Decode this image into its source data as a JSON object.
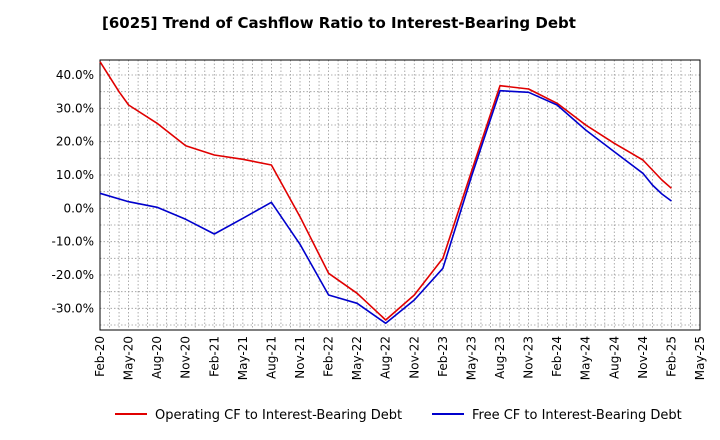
{
  "chart_data": {
    "type": "line",
    "title": "[6025]  Trend of Cashflow Ratio to Interest-Bearing Debt",
    "xlabel": "",
    "ylabel": "",
    "x_ticks": [
      "Feb-20",
      "May-20",
      "Aug-20",
      "Nov-20",
      "Feb-21",
      "May-21",
      "Aug-21",
      "Nov-21",
      "Feb-22",
      "May-22",
      "Aug-22",
      "Nov-22",
      "Feb-23",
      "May-23",
      "Aug-23",
      "Nov-23",
      "Feb-24",
      "May-24",
      "Aug-24",
      "Nov-24",
      "Feb-25",
      "May-25"
    ],
    "y_ticks": [
      "40.0%",
      "30.0%",
      "20.0%",
      "10.0%",
      "0.0%",
      "-10.0%",
      "-20.0%",
      "-30.0%"
    ],
    "ylim": [
      -36.5,
      44.5
    ],
    "grid": true,
    "legend_position": "bottom",
    "series": [
      {
        "name": "Operating CF to Interest-Bearing Debt",
        "color": "#e00000",
        "points": [
          [
            "Feb-20",
            44.0
          ],
          [
            "Apr-20",
            35.0
          ],
          [
            "May-20",
            31.0
          ],
          [
            "Aug-20",
            25.5
          ],
          [
            "Nov-20",
            18.8
          ],
          [
            "Feb-21",
            16.0
          ],
          [
            "May-21",
            14.7
          ],
          [
            "Aug-21",
            13.0
          ],
          [
            "Nov-21",
            -2.5
          ],
          [
            "Feb-22",
            -19.5
          ],
          [
            "May-22",
            -25.5
          ],
          [
            "Aug-22",
            -33.5
          ],
          [
            "Nov-22",
            -26.0
          ],
          [
            "Feb-23",
            -15.0
          ],
          [
            "May-23",
            11.0
          ],
          [
            "Aug-23",
            36.8
          ],
          [
            "Nov-23",
            35.8
          ],
          [
            "Feb-24",
            31.5
          ],
          [
            "May-24",
            25.0
          ],
          [
            "Aug-24",
            19.5
          ],
          [
            "Nov-24",
            14.5
          ],
          [
            "Dec-24",
            11.5
          ],
          [
            "Jan-25",
            8.5
          ],
          [
            "Feb-25",
            6.0
          ]
        ]
      },
      {
        "name": "Free CF to Interest-Bearing Debt",
        "color": "#0000cc",
        "points": [
          [
            "Feb-20",
            4.5
          ],
          [
            "May-20",
            2.0
          ],
          [
            "Aug-20",
            0.3
          ],
          [
            "Nov-20",
            -3.3
          ],
          [
            "Feb-21",
            -7.7
          ],
          [
            "May-21",
            -3.0
          ],
          [
            "Aug-21",
            1.8
          ],
          [
            "Nov-21",
            -10.8
          ],
          [
            "Feb-22",
            -26.0
          ],
          [
            "May-22",
            -28.5
          ],
          [
            "Aug-22",
            -34.5
          ],
          [
            "Nov-22",
            -27.5
          ],
          [
            "Feb-23",
            -18.0
          ],
          [
            "May-23",
            9.5
          ],
          [
            "Aug-23",
            35.3
          ],
          [
            "Nov-23",
            34.8
          ],
          [
            "Feb-24",
            31.0
          ],
          [
            "May-24",
            23.5
          ],
          [
            "Aug-24",
            17.0
          ],
          [
            "Nov-24",
            10.5
          ],
          [
            "Dec-24",
            7.0
          ],
          [
            "Jan-25",
            4.3
          ],
          [
            "Feb-25",
            2.2
          ]
        ]
      }
    ]
  }
}
